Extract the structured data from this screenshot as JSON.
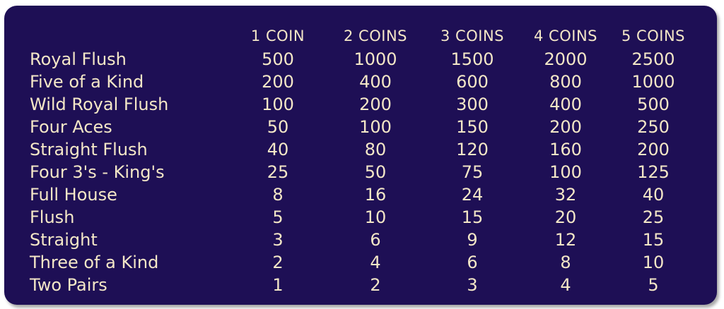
{
  "paytable": {
    "columns": [
      "1 COIN",
      "2 COINS",
      "3 COINS",
      "4 COINS",
      "5 COINS"
    ],
    "rows": [
      {
        "hand": "Royal Flush",
        "payouts": [
          "500",
          "1000",
          "1500",
          "2000",
          "2500"
        ]
      },
      {
        "hand": "Five of a Kind",
        "payouts": [
          "200",
          "400",
          "600",
          "800",
          "1000"
        ]
      },
      {
        "hand": "Wild Royal Flush",
        "payouts": [
          "100",
          "200",
          "300",
          "400",
          "500"
        ]
      },
      {
        "hand": "Four Aces",
        "payouts": [
          "50",
          "100",
          "150",
          "200",
          "250"
        ]
      },
      {
        "hand": "Straight Flush",
        "payouts": [
          "40",
          "80",
          "120",
          "160",
          "200"
        ]
      },
      {
        "hand": "Four 3's - King's",
        "payouts": [
          "25",
          "50",
          "75",
          "100",
          "125"
        ]
      },
      {
        "hand": "Full House",
        "payouts": [
          "8",
          "16",
          "24",
          "32",
          "40"
        ]
      },
      {
        "hand": "Flush",
        "payouts": [
          "5",
          "10",
          "15",
          "20",
          "25"
        ]
      },
      {
        "hand": "Straight",
        "payouts": [
          "3",
          "6",
          "9",
          "12",
          "15"
        ]
      },
      {
        "hand": "Three of a Kind",
        "payouts": [
          "2",
          "4",
          "6",
          "8",
          "10"
        ]
      },
      {
        "hand": "Two Pairs",
        "payouts": [
          "1",
          "2",
          "3",
          "4",
          "5"
        ]
      }
    ]
  },
  "colors": {
    "panel_background": "#1e0f55",
    "text": "#f4e7c7"
  }
}
